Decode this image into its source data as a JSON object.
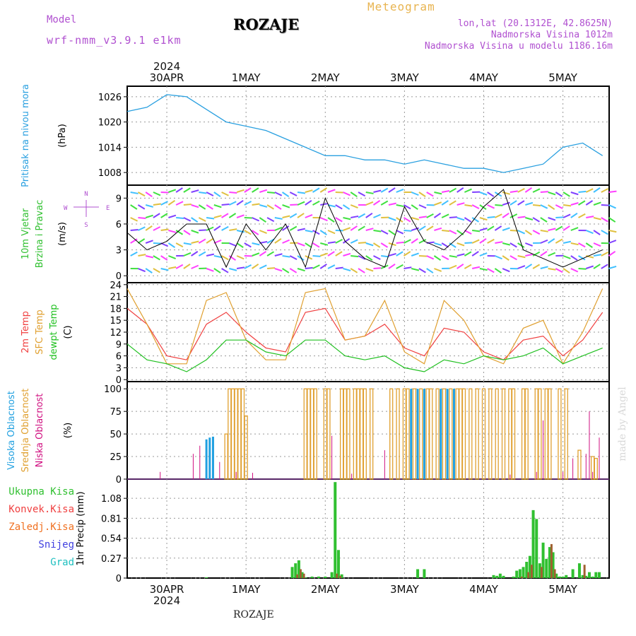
{
  "header": {
    "model_label": "Model",
    "model_value": "wrf-nmm_v3.9.1 e1km",
    "station": "ROZAJE",
    "meteogram": "Meteogram",
    "lonlat": "lon,lat (20.1312E, 42.8625N)",
    "elevation": "Nadmorska Visina 1012m",
    "model_elevation": "Nadmorska Visina u modelu 1186.16m",
    "watermark": "made by Angel",
    "bottom_station": "ROZAJE"
  },
  "colors": {
    "pressure": "#2aa0e0",
    "temp2m": "#f04040",
    "sfc": "#e0a030",
    "dewpt": "#20c020",
    "high_cloud": "#20a0e0",
    "mid_cloud": "#e0a030",
    "low_cloud": "#d01080",
    "total_precip": "#30c030",
    "conv_precip": "#f04040",
    "frozen": "#f07020",
    "snow": "#4040e0",
    "hail": "#20c0c0"
  },
  "chart_data": [
    {
      "type": "line",
      "panel": "pressure",
      "ylabel_rotated": "Pritisak na nivou mora",
      "unit": "(hPa)",
      "yticks": [
        1008,
        1014,
        1020,
        1026
      ],
      "ylim": [
        1005,
        1028.5
      ],
      "x_hours": [
        0,
        6,
        12,
        18,
        24,
        30,
        36,
        42,
        48,
        54,
        60,
        66,
        72,
        78,
        84,
        90,
        96,
        102,
        108,
        114,
        120,
        126,
        132,
        138,
        144
      ],
      "values": [
        1022.5,
        1023.5,
        1026.5,
        1026,
        1023,
        1020,
        1019,
        1018,
        1016,
        1014,
        1012,
        1012,
        1011,
        1011,
        1010,
        1011,
        1010,
        1009,
        1009,
        1008,
        1009,
        1010,
        1014,
        1015,
        1012
      ]
    },
    {
      "type": "line",
      "panel": "wind",
      "ylabel_rotated": [
        "10m Vjetar",
        "Brzina i Pravac"
      ],
      "unit": "(m/s)",
      "compass": [
        "N",
        "W",
        "E",
        "S"
      ],
      "yticks": [
        0,
        3,
        6,
        9
      ],
      "ylim": [
        -0.8,
        10.5
      ],
      "x_hours": [
        0,
        6,
        12,
        18,
        24,
        30,
        36,
        42,
        48,
        54,
        60,
        66,
        72,
        78,
        84,
        90,
        96,
        102,
        108,
        114,
        120,
        126,
        132,
        138,
        144
      ],
      "values": [
        5,
        3,
        4,
        6,
        6,
        1,
        6,
        3,
        6,
        1,
        9,
        4,
        2,
        1,
        8,
        4,
        3,
        5,
        8,
        10,
        3,
        2,
        1,
        2,
        3
      ]
    },
    {
      "type": "line",
      "panel": "temperature",
      "ylabel_rotated": [
        "2m Temp",
        "SFC Temp",
        "dewpt Temp"
      ],
      "unit": "(C)",
      "yticks": [
        0,
        3,
        6,
        9,
        12,
        15,
        18,
        21,
        24
      ],
      "ylim": [
        -0.5,
        24.5
      ],
      "x_hours": [
        0,
        6,
        12,
        18,
        24,
        30,
        36,
        42,
        48,
        54,
        60,
        66,
        72,
        78,
        84,
        90,
        96,
        102,
        108,
        114,
        120,
        126,
        132,
        138,
        144
      ],
      "series": [
        {
          "key": "temp2m",
          "values": [
            18,
            14,
            6,
            5,
            14,
            17,
            12,
            8,
            7,
            17,
            18,
            10,
            11,
            14,
            8,
            6,
            13,
            12,
            7,
            5,
            10,
            11,
            6,
            10,
            17
          ]
        },
        {
          "key": "sfc",
          "values": [
            23,
            14,
            4,
            4,
            20,
            22,
            10,
            5,
            5,
            22,
            23,
            10,
            11,
            20,
            7,
            4,
            20,
            15,
            6,
            4,
            13,
            15,
            4,
            12,
            23
          ]
        },
        {
          "key": "dewpt",
          "values": [
            9,
            5,
            4,
            2,
            5,
            10,
            10,
            7,
            6,
            10,
            10,
            6,
            5,
            6,
            3,
            2,
            5,
            4,
            6,
            5,
            6,
            8,
            4,
            6,
            8
          ]
        }
      ]
    },
    {
      "type": "bar",
      "panel": "clouds",
      "ylabel_rotated": [
        "Visoka Oblacnost",
        "Srednja Oblacnost",
        "Niska Oblacnost"
      ],
      "unit": "(%)",
      "yticks": [
        0,
        25,
        50,
        75,
        100
      ],
      "ylim": [
        0,
        108
      ],
      "series": [
        {
          "key": "high_cloud",
          "hours": [
            24,
            25,
            26,
            86,
            88,
            90,
            95,
            97,
            99
          ],
          "values": [
            44,
            46,
            47,
            100,
            100,
            100,
            100,
            100,
            100
          ]
        },
        {
          "key": "mid_cloud",
          "hours": [
            30,
            31,
            32,
            33,
            34,
            35,
            36,
            54,
            55,
            56,
            57,
            60,
            61,
            65,
            66,
            67,
            69,
            70,
            71,
            72,
            74,
            80,
            82,
            84,
            85,
            87,
            89,
            91,
            92,
            94,
            96,
            98,
            100,
            101,
            102,
            104,
            106,
            108,
            110,
            112,
            114,
            116,
            117,
            120,
            121,
            124,
            125,
            127,
            128,
            131,
            133,
            137,
            141,
            142
          ],
          "values": [
            50,
            100,
            100,
            100,
            100,
            100,
            70,
            100,
            100,
            100,
            100,
            100,
            100,
            100,
            100,
            100,
            100,
            100,
            100,
            100,
            100,
            100,
            100,
            100,
            100,
            100,
            100,
            100,
            100,
            100,
            100,
            100,
            100,
            100,
            100,
            100,
            100,
            100,
            100,
            100,
            100,
            100,
            100,
            100,
            100,
            100,
            100,
            100,
            100,
            100,
            100,
            32,
            25,
            23
          ]
        },
        {
          "key": "low_cloud",
          "hours": [
            10,
            20,
            22,
            28,
            33,
            38,
            62,
            68,
            78,
            116,
            124,
            126,
            132,
            135,
            139,
            140,
            141,
            143
          ],
          "values": [
            8,
            28,
            37,
            19,
            8,
            7,
            48,
            6,
            32,
            5,
            8,
            65,
            8,
            23,
            28,
            75,
            8,
            46
          ]
        }
      ]
    },
    {
      "type": "bar",
      "panel": "precip",
      "ylabel_rotated": "1hr Precip (mm)",
      "legend": [
        "Ukupna Kisa",
        "Konvek.Kisa",
        "Zaledj.Kisa",
        "Snijeg",
        "Grad"
      ],
      "yticks": [
        0,
        0.27,
        0.54,
        0.81,
        1.08
      ],
      "ylim": [
        0,
        1.34
      ],
      "series": [
        {
          "key": "total_precip",
          "hours": [
            24,
            50,
            51,
            52,
            53,
            54,
            56,
            58,
            60,
            62,
            63,
            64,
            65,
            88,
            90,
            111,
            112,
            113,
            114,
            117,
            118,
            119,
            120,
            121,
            122,
            123,
            124,
            125,
            126,
            127,
            128,
            129,
            130,
            131,
            132,
            133,
            135,
            137,
            138,
            139,
            140,
            141,
            142,
            143
          ],
          "values": [
            0.01,
            0.15,
            0.2,
            0.24,
            0.08,
            0.01,
            0.02,
            0.02,
            0.02,
            0.08,
            1.3,
            0.38,
            0.05,
            0.12,
            0.12,
            0.04,
            0.03,
            0.06,
            0.03,
            0.02,
            0.1,
            0.12,
            0.15,
            0.22,
            0.3,
            0.92,
            0.8,
            0.2,
            0.48,
            0.26,
            0.42,
            0.35,
            0.06,
            0.02,
            0.02,
            0.04,
            0.12,
            0.2,
            0.04,
            0.03,
            0.08,
            0.02,
            0.08,
            0.08
          ]
        },
        {
          "key": "conv_precip",
          "hours": [
            51,
            52,
            53,
            63,
            64,
            119,
            121,
            122,
            125,
            128,
            129,
            138
          ],
          "values": [
            0.05,
            0.12,
            0.06,
            0.06,
            0.03,
            0.02,
            0.08,
            0.18,
            0.15,
            0.46,
            0.12,
            0.18
          ]
        }
      ]
    }
  ],
  "time_axis": {
    "x_hours_range": [
      0,
      146
    ],
    "day_positions_hours": [
      12,
      36,
      60,
      84,
      108,
      132
    ],
    "top_labels": [
      "30APR",
      "1MAY",
      "2MAY",
      "3MAY",
      "4MAY",
      "5MAY"
    ],
    "bottom_labels": [
      "30APR",
      "1MAY",
      "2MAY",
      "3MAY",
      "4MAY",
      "5MAY"
    ],
    "year": "2024"
  }
}
